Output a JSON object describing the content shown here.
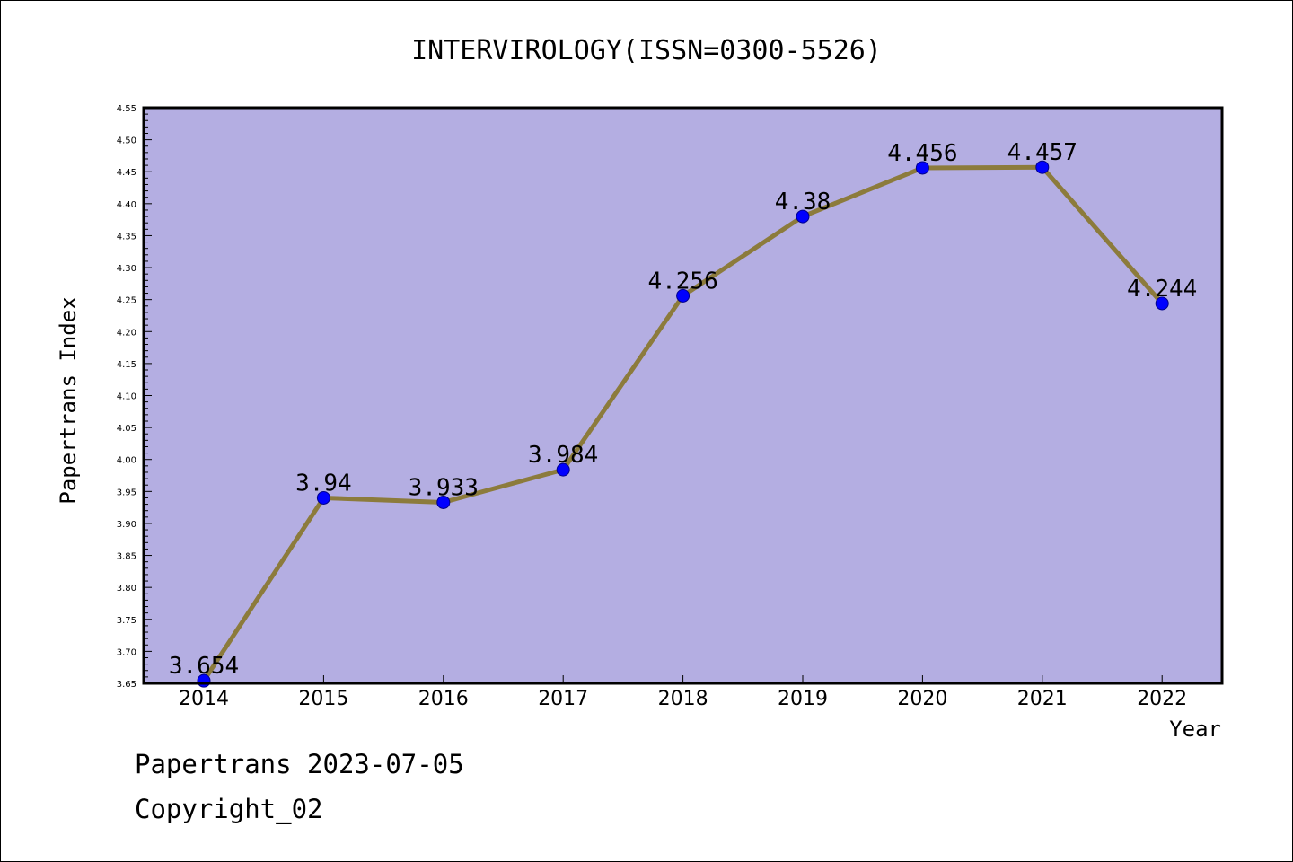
{
  "chart_data": {
    "type": "line",
    "title": "INTERVIROLOGY(ISSN=0300-5526)",
    "xlabel": "Year",
    "ylabel": "Papertrans Index",
    "categories": [
      "2014",
      "2015",
      "2016",
      "2017",
      "2018",
      "2019",
      "2020",
      "2021",
      "2022"
    ],
    "values": [
      3.654,
      3.94,
      3.933,
      3.984,
      4.256,
      4.38,
      4.456,
      4.457,
      4.244
    ],
    "data_labels": [
      "3.654",
      "3.94",
      "3.933",
      "3.984",
      "4.256",
      "4.38",
      "4.456",
      "4.457",
      "4.244"
    ],
    "ylim": [
      3.65,
      4.55
    ],
    "yticks": [
      "3.65",
      "3.70",
      "3.75",
      "3.80",
      "3.85",
      "3.90",
      "3.95",
      "4.00",
      "4.05",
      "4.10",
      "4.15",
      "4.20",
      "4.25",
      "4.30",
      "4.35",
      "4.40",
      "4.45",
      "4.50",
      "4.55"
    ],
    "grid": false,
    "colors": {
      "plot_background": "#b4aee2",
      "line": "#8c7b3c",
      "marker": "#0000ff"
    }
  },
  "footer": {
    "line1": "Papertrans 2023-07-05",
    "line2": "Copyright_02"
  }
}
